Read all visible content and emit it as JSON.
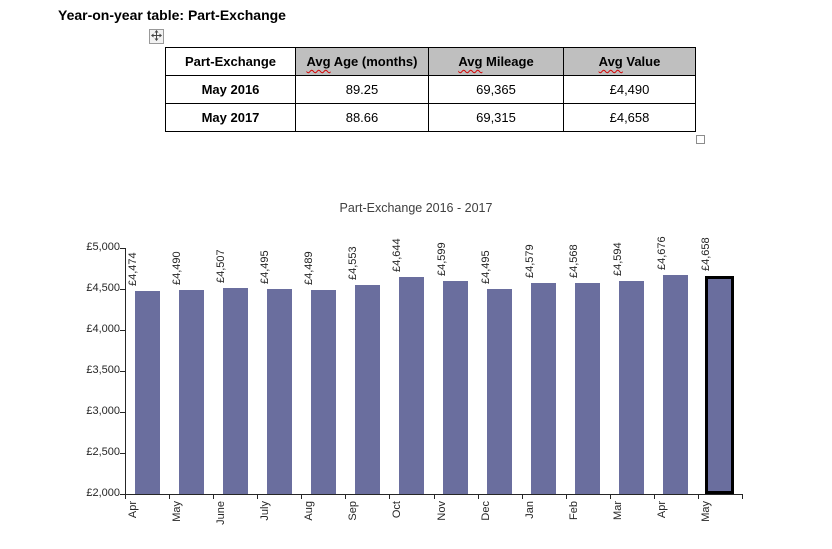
{
  "title": "Year-on-year table: Part-Exchange",
  "table": {
    "columns": [
      {
        "label": "Part-Exchange"
      },
      {
        "avg": "Avg",
        "rest": " Age (months)"
      },
      {
        "avg": "Avg",
        "rest": " Mileage"
      },
      {
        "avg": "Avg",
        "rest": " Value"
      }
    ],
    "rows": [
      {
        "label": "May 2016",
        "cells": [
          "89.25",
          "69,365",
          "£4,490"
        ]
      },
      {
        "label": "May 2017",
        "cells": [
          "88.66",
          "69,315",
          "£4,658"
        ]
      }
    ],
    "header_bg": "#bfbfbf"
  },
  "chart_data": {
    "type": "bar",
    "title": "Part-Exchange 2016 - 2017",
    "categories": [
      "Apr",
      "May",
      "June",
      "July",
      "Aug",
      "Sep",
      "Oct",
      "Nov",
      "Dec",
      "Jan",
      "Feb",
      "Mar",
      "Apr",
      "May"
    ],
    "values": [
      4474,
      4490,
      4507,
      4495,
      4489,
      4553,
      4644,
      4599,
      4495,
      4579,
      4568,
      4594,
      4676,
      4658
    ],
    "value_labels": [
      "£4,474",
      "£4,490",
      "£4,507",
      "£4,495",
      "£4,489",
      "£4,553",
      "£4,644",
      "£4,599",
      "£4,495",
      "£4,579",
      "£4,568",
      "£4,594",
      "£4,676",
      "£4,658"
    ],
    "xlabel": "",
    "ylabel": "",
    "ylim": [
      2000,
      5000
    ],
    "y_ticks": [
      "£5,000",
      "£4,500",
      "£4,000",
      "£3,500",
      "£3,000",
      "£2,500",
      "£2,000"
    ],
    "grid": false,
    "legend": false,
    "label_rotation": "vertical-bottom-up",
    "bar_color": "#6a6e9e",
    "highlighted_index": 13,
    "highlight_border": "#000000"
  }
}
